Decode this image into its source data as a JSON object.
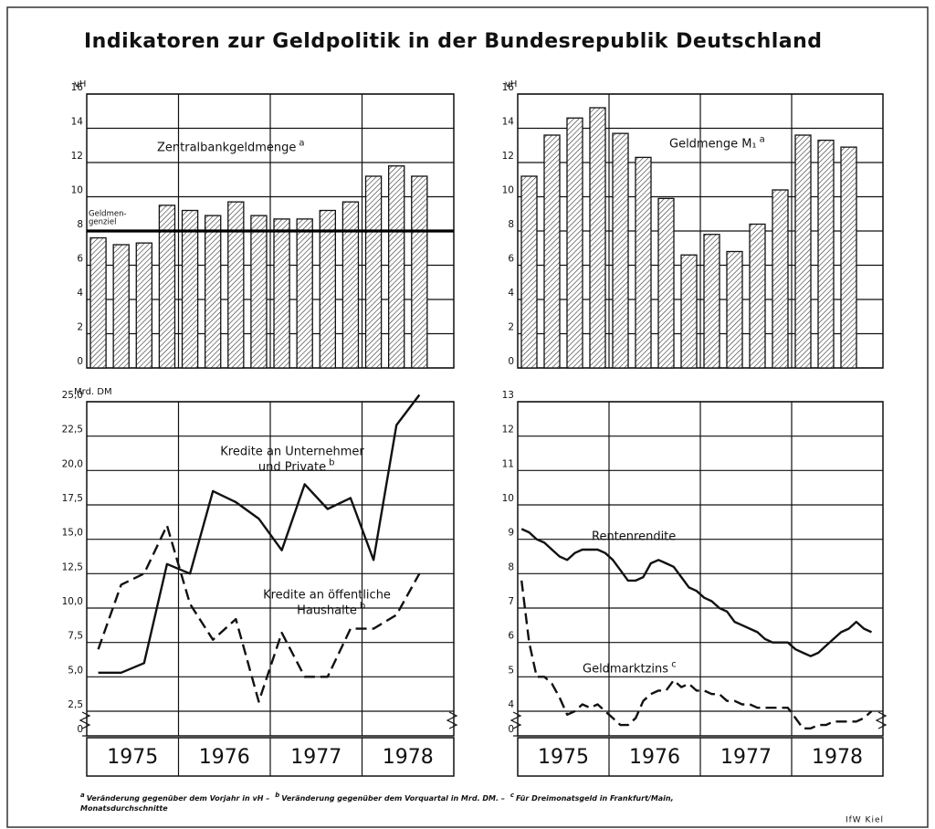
{
  "title": "Indikatoren zur Geldpolitik in der Bundesrepublik Deutschland",
  "categories": [
    "1975",
    "1976",
    "1977",
    "1978"
  ],
  "chart_data": [
    {
      "type": "bar",
      "y_label": "vH",
      "x_period": "quarter",
      "color": "#111",
      "hatch": true,
      "ylim": [
        0,
        16
      ],
      "yticks": [
        0,
        2,
        4,
        6,
        8,
        10,
        12,
        14,
        16
      ],
      "grid": true,
      "series": [
        {
          "name": [
            "Zentralbankgeldmenge"
          ],
          "note": "a",
          "values": [
            7.6,
            7.2,
            7.3,
            9.5,
            9.2,
            8.9,
            9.7,
            8.9,
            8.7,
            8.7,
            9.2,
            9.7,
            11.2,
            11.8,
            11.2
          ]
        }
      ],
      "reference_line": {
        "value": 8,
        "label": [
          "Geldmen-",
          "genziel"
        ]
      }
    },
    {
      "type": "bar",
      "y_label": "vH",
      "x_period": "quarter",
      "color": "#111",
      "hatch": true,
      "ylim": [
        0,
        16
      ],
      "yticks": [
        0,
        2,
        4,
        6,
        8,
        10,
        12,
        14,
        16
      ],
      "grid": true,
      "series": [
        {
          "name": [
            "Geldmenge M₁"
          ],
          "note": "a",
          "values": [
            11.2,
            13.6,
            14.6,
            15.2,
            13.7,
            12.3,
            9.9,
            6.6,
            7.8,
            6.8,
            8.4,
            10.4,
            13.6,
            13.3,
            12.9
          ]
        }
      ]
    },
    {
      "type": "line",
      "y_label": "Mrd. DM",
      "x_period": "quarter",
      "axis_break": true,
      "ylim": [
        2.5,
        25
      ],
      "grid": true,
      "yticks": [
        0,
        {
          "value": 2.5,
          "label": "2,5"
        },
        {
          "value": 5,
          "label": "5,0"
        },
        {
          "value": 7.5,
          "label": "7,5"
        },
        {
          "value": 10,
          "label": "10,0"
        },
        {
          "value": 12.5,
          "label": "12,5"
        },
        {
          "value": 15,
          "label": "15,0"
        },
        {
          "value": 17.5,
          "label": "17,5"
        },
        {
          "value": 20,
          "label": "20,0"
        },
        {
          "value": 22.5,
          "label": "22,5"
        },
        {
          "value": 25,
          "label": "25,0"
        }
      ],
      "series": [
        {
          "name": [
            "Kredite an Unternehmer",
            "und Private"
          ],
          "note": "b",
          "style": "solid",
          "color": "#111",
          "values": [
            5.3,
            5.3,
            6.0,
            13.2,
            12.5,
            18.5,
            17.7,
            16.5,
            14.2,
            19.0,
            17.2,
            18.0,
            13.5,
            23.3,
            25.5
          ]
        },
        {
          "name": [
            "Kredite an öffentliche",
            "Haushalte"
          ],
          "note": "b",
          "style": "dashed",
          "color": "#111",
          "values": [
            7.0,
            11.7,
            12.5,
            16.0,
            10.3,
            7.7,
            9.2,
            3.2,
            8.2,
            5.0,
            5.0,
            8.5,
            8.5,
            9.5,
            12.5
          ]
        }
      ]
    },
    {
      "type": "line",
      "x_period": "month",
      "axis_break": true,
      "ylim": [
        4,
        13
      ],
      "grid": true,
      "yticks": [
        0,
        4,
        5,
        6,
        7,
        8,
        9,
        10,
        11,
        12,
        13
      ],
      "series": [
        {
          "name": [
            "Rentenrendite"
          ],
          "style": "solid",
          "color": "#111",
          "values": [
            9.3,
            9.2,
            9.0,
            8.9,
            8.7,
            8.5,
            8.4,
            8.6,
            8.7,
            8.7,
            8.7,
            8.6,
            8.4,
            8.1,
            7.8,
            7.8,
            7.9,
            8.3,
            8.4,
            8.3,
            8.2,
            7.9,
            7.6,
            7.5,
            7.3,
            7.2,
            7.0,
            6.9,
            6.6,
            6.5,
            6.4,
            6.3,
            6.1,
            6.0,
            6.0,
            6.0,
            5.8,
            5.7,
            5.6,
            5.7,
            5.9,
            6.1,
            6.3,
            6.4,
            6.6,
            6.4,
            6.3
          ]
        },
        {
          "name": [
            "Geldmarktzins"
          ],
          "note": "c",
          "style": "dashed",
          "color": "#111",
          "values": [
            7.8,
            6.0,
            5.0,
            5.0,
            4.8,
            4.4,
            3.9,
            4.0,
            4.2,
            4.1,
            4.2,
            4.0,
            3.8,
            3.6,
            3.6,
            3.8,
            4.3,
            4.5,
            4.6,
            4.6,
            4.9,
            4.7,
            4.8,
            4.6,
            4.6,
            4.5,
            4.5,
            4.3,
            4.3,
            4.2,
            4.2,
            4.1,
            4.1,
            4.1,
            4.1,
            4.1,
            3.8,
            3.5,
            3.5,
            3.6,
            3.6,
            3.7,
            3.7,
            3.7,
            3.7,
            3.8,
            4.0
          ]
        }
      ]
    }
  ],
  "footnotes": [
    {
      "mark": "a",
      "text": [
        "Veränderung gegenüber dem Vorjahr in vH –"
      ]
    },
    {
      "mark": "b",
      "text": [
        "Veränderung gegenüber dem Vorquartal in Mrd. DM. –"
      ]
    },
    {
      "mark": "c",
      "text": [
        "Für Dreimonatsgeld in Frankfurt/Main,",
        "Monatsdurchschnitte"
      ]
    }
  ],
  "source": "IfW Kiel"
}
